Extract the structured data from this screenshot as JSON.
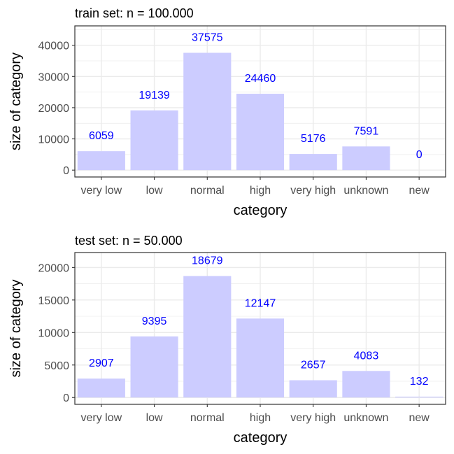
{
  "chart_data": [
    {
      "type": "bar",
      "title": "train set: n = 100.000",
      "xlabel": "category",
      "ylabel": "size of category",
      "categories": [
        "very low",
        "low",
        "normal",
        "high",
        "very high",
        "unknown",
        "new"
      ],
      "values": [
        6059,
        19139,
        37575,
        24460,
        5176,
        7591,
        0
      ],
      "data_labels": [
        "6059",
        "19139",
        "37575",
        "24460",
        "5176",
        "7591",
        "0"
      ],
      "yticks": [
        0,
        10000,
        20000,
        30000,
        40000
      ],
      "ytick_labels": [
        "0",
        "10000",
        "20000",
        "30000",
        "40000"
      ],
      "ylim": [
        -2200,
        46200
      ],
      "grid": true,
      "bar_color": "#ccccff",
      "label_color": "#0000ff"
    },
    {
      "type": "bar",
      "title": "test set: n = 50.000",
      "xlabel": "category",
      "ylabel": "size of category",
      "categories": [
        "very low",
        "low",
        "normal",
        "high",
        "very high",
        "unknown",
        "new"
      ],
      "values": [
        2907,
        9395,
        18679,
        12147,
        2657,
        4083,
        132
      ],
      "data_labels": [
        "2907",
        "9395",
        "18679",
        "12147",
        "2657",
        "4083",
        "132"
      ],
      "yticks": [
        0,
        5000,
        10000,
        15000,
        20000
      ],
      "ytick_labels": [
        "0",
        "5000",
        "10000",
        "15000",
        "20000"
      ],
      "ylim": [
        -1050,
        22300
      ],
      "grid": true,
      "bar_color": "#ccccff",
      "label_color": "#0000ff"
    }
  ]
}
